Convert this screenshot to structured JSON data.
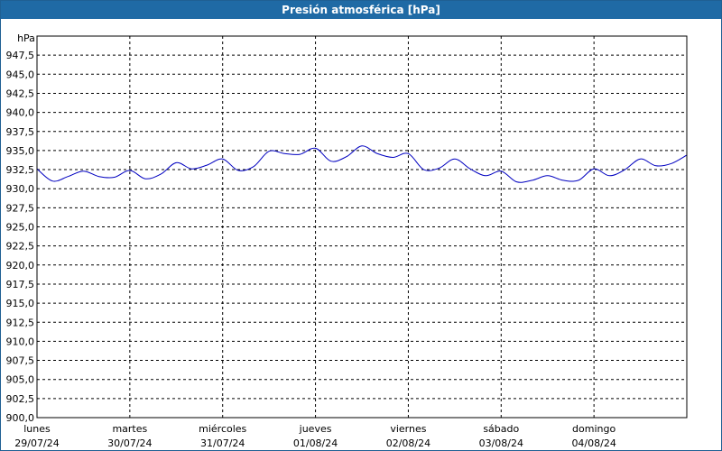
{
  "window": {
    "title": "Presión atmosférica [hPa]"
  },
  "chart_data": {
    "type": "line",
    "title": "Presión atmosférica [hPa]",
    "ylabel": "hPa",
    "xlabel": "",
    "ylim": [
      900.0,
      950.0
    ],
    "y_ticks": [
      "947,5",
      "945,0",
      "942,5",
      "940,0",
      "937,5",
      "935,0",
      "932,5",
      "930,0",
      "927,5",
      "925,0",
      "922,5",
      "920,0",
      "917,5",
      "915,0",
      "912,5",
      "910,0",
      "907,5",
      "905,0",
      "902,5",
      "900,0"
    ],
    "x_ticks": [
      {
        "day": "lunes",
        "date": "29/07/24"
      },
      {
        "day": "martes",
        "date": "30/07/24"
      },
      {
        "day": "miércoles",
        "date": "31/07/24"
      },
      {
        "day": "jueves",
        "date": "01/08/24"
      },
      {
        "day": "viernes",
        "date": "02/08/24"
      },
      {
        "day": "sábado",
        "date": "03/08/24"
      },
      {
        "day": "domingo",
        "date": "04/08/24"
      }
    ],
    "xlim": [
      "2024-07-29 00:00",
      "2024-08-05 00:00"
    ],
    "grid": true,
    "color": "#0000c0",
    "series": [
      {
        "x": [
          "2024-07-29 00:00",
          "2024-07-29 04:00",
          "2024-07-29 08:00",
          "2024-07-29 12:00",
          "2024-07-29 16:00",
          "2024-07-29 20:00",
          "2024-07-30 00:00",
          "2024-07-30 04:00",
          "2024-07-30 08:00",
          "2024-07-30 12:00",
          "2024-07-30 16:00",
          "2024-07-30 20:00",
          "2024-07-31 00:00",
          "2024-07-31 04:00",
          "2024-07-31 08:00",
          "2024-07-31 12:00",
          "2024-07-31 16:00",
          "2024-07-31 20:00",
          "2024-08-01 00:00",
          "2024-08-01 04:00",
          "2024-08-01 08:00",
          "2024-08-01 12:00",
          "2024-08-01 16:00",
          "2024-08-01 20:00",
          "2024-08-02 00:00",
          "2024-08-02 04:00",
          "2024-08-02 08:00",
          "2024-08-02 12:00",
          "2024-08-02 16:00",
          "2024-08-02 20:00",
          "2024-08-03 00:00",
          "2024-08-03 04:00",
          "2024-08-03 08:00",
          "2024-08-03 12:00",
          "2024-08-03 16:00",
          "2024-08-03 20:00",
          "2024-08-04 00:00",
          "2024-08-04 04:00",
          "2024-08-04 08:00",
          "2024-08-04 12:00",
          "2024-08-04 16:00",
          "2024-08-04 20:00",
          "2024-08-05 00:00"
        ],
        "y": [
          932.6,
          931.0,
          931.6,
          932.3,
          931.6,
          931.5,
          932.4,
          931.3,
          931.9,
          933.4,
          932.6,
          933.1,
          933.9,
          932.4,
          932.9,
          934.9,
          934.6,
          934.5,
          935.3,
          933.6,
          934.2,
          935.6,
          934.6,
          934.1,
          934.6,
          932.5,
          932.7,
          933.9,
          932.6,
          931.7,
          932.3,
          930.9,
          931.1,
          931.7,
          931.1,
          931.1,
          932.6,
          931.7,
          932.5,
          933.9,
          933.0,
          933.3,
          934.4
        ]
      }
    ]
  }
}
